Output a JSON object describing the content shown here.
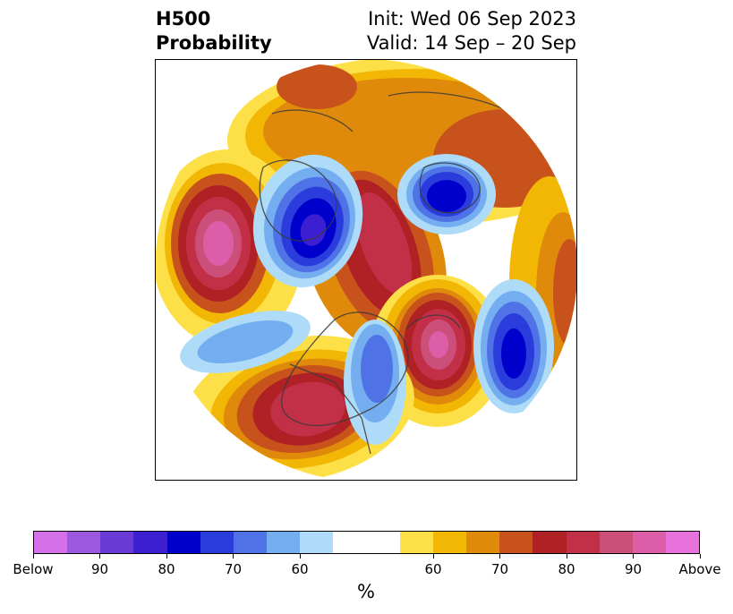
{
  "title": {
    "left_line1": "H500",
    "left_line2": "Probability",
    "right_line1": "Init: Wed 06 Sep 2023",
    "right_line2": "Valid: 14 Sep – 20 Sep"
  },
  "colorbar": {
    "unit": "%",
    "colors": [
      "#d670e8",
      "#9b59e0",
      "#6a3ad6",
      "#3b1fd0",
      "#0000cc",
      "#2a3ddc",
      "#4f73e6",
      "#74aef0",
      "#aedcf8",
      "#ffffff",
      "#ffffff",
      "#fde047",
      "#f2b705",
      "#e08a0c",
      "#c8521b",
      "#b02125",
      "#c23048",
      "#cc4f7a",
      "#dc5ea8",
      "#e872dc"
    ],
    "labels": [
      {
        "text": "Below",
        "index": 0
      },
      {
        "text": "90",
        "index": 2
      },
      {
        "text": "80",
        "index": 4
      },
      {
        "text": "70",
        "index": 6
      },
      {
        "text": "60",
        "index": 8
      },
      {
        "text": "60",
        "index": 12
      },
      {
        "text": "70",
        "index": 14
      },
      {
        "text": "80",
        "index": 16
      },
      {
        "text": "90",
        "index": 18
      },
      {
        "text": "Above",
        "index": 20
      }
    ]
  }
}
